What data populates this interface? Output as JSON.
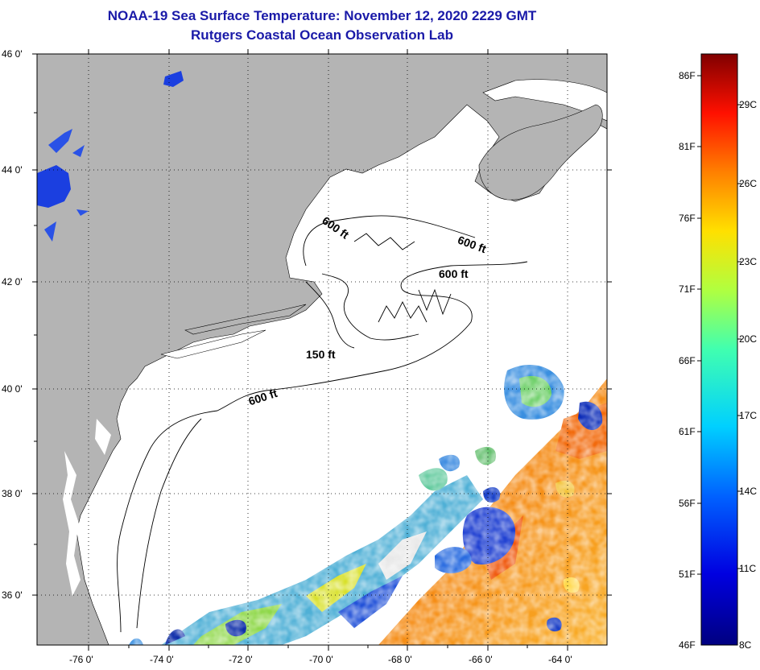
{
  "title": {
    "line1": "NOAA-19 Sea Surface Temperature:  November 12, 2020 2229 GMT",
    "line2": "Rutgers Coastal Ocean Observation Lab"
  },
  "axes": {
    "lat_labels": [
      "46 0'",
      "44 0'",
      "42 0'",
      "40 0'",
      "38 0'",
      "36 0'"
    ],
    "lon_labels": [
      "-76 0'",
      "-74 0'",
      "-72 0'",
      "-70 0'",
      "-68 0'",
      "-66 0'",
      "-64 0'"
    ]
  },
  "contours": {
    "labels": [
      "600 ft",
      "600 ft",
      "600 ft",
      "150 ft",
      "600 ft"
    ]
  },
  "colorbar": {
    "fahrenheit": [
      "86F",
      "81F",
      "76F",
      "71F",
      "66F",
      "61F",
      "56F",
      "51F",
      "46F"
    ],
    "celsius": [
      "29C",
      "26C",
      "23C",
      "20C",
      "17C",
      "14C",
      "11C",
      "8C"
    ]
  },
  "colors": {
    "land": "#b4b4b4",
    "title": "#1a1aa8",
    "ocean": "#ffffff"
  }
}
